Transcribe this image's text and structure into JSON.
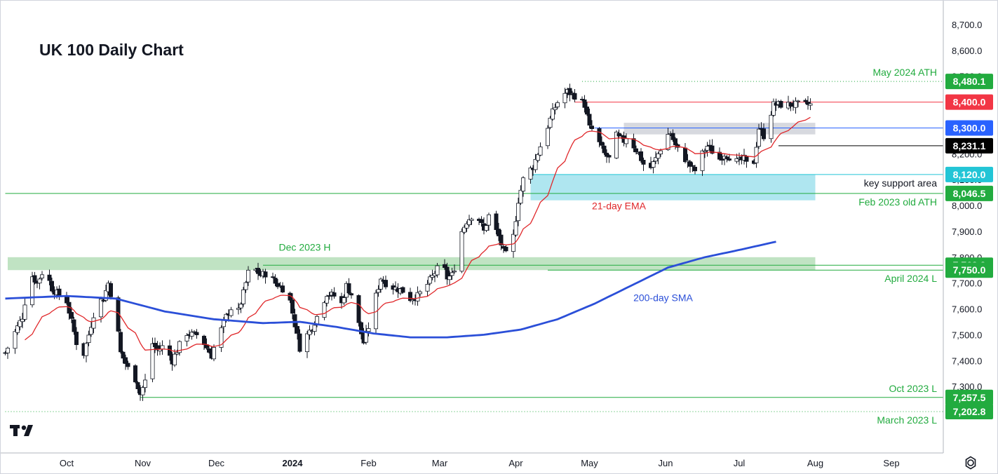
{
  "chart_data": {
    "type": "candlestick",
    "title": "UK 100 Daily Chart",
    "ylim": [
      7180,
      8760
    ],
    "y_ticks": [
      "7,300.0",
      "7,400.0",
      "7,500.0",
      "7,600.0",
      "7,700.0",
      "7,800.0",
      "7,900.0",
      "8,000.0",
      "8,100.0",
      "8,200.0",
      "8,300.0",
      "8,400.0",
      "8,500.0",
      "8,600.0",
      "8,700.0"
    ],
    "x_ticks": [
      {
        "label": "Oct",
        "day": 0,
        "bold": false
      },
      {
        "label": "Nov",
        "day": 31,
        "bold": false
      },
      {
        "label": "Dec",
        "day": 61,
        "bold": false
      },
      {
        "label": "2024",
        "day": 92,
        "bold": true
      },
      {
        "label": "Feb",
        "day": 123,
        "bold": false
      },
      {
        "label": "Mar",
        "day": 152,
        "bold": false
      },
      {
        "label": "Apr",
        "day": 183,
        "bold": false
      },
      {
        "label": "May",
        "day": 213,
        "bold": false
      },
      {
        "label": "Jun",
        "day": 244,
        "bold": false
      },
      {
        "label": "Jul",
        "day": 274,
        "bold": false
      },
      {
        "label": "Aug",
        "day": 305,
        "bold": false
      },
      {
        "label": "Sep",
        "day": 336,
        "bold": false
      }
    ],
    "price_path": {
      "start_day": -25,
      "end_day": 303,
      "anchors": [
        [
          -25,
          7430
        ],
        [
          -22,
          7490
        ],
        [
          -18,
          7570
        ],
        [
          -15,
          7740
        ],
        [
          -12,
          7700
        ],
        [
          -9,
          7760
        ],
        [
          -6,
          7680
        ],
        [
          -3,
          7650
        ],
        [
          0,
          7630
        ],
        [
          4,
          7470
        ],
        [
          6,
          7390
        ],
        [
          9,
          7500
        ],
        [
          12,
          7620
        ],
        [
          15,
          7640
        ],
        [
          17,
          7700
        ],
        [
          20,
          7580
        ],
        [
          22,
          7430
        ],
        [
          25,
          7370
        ],
        [
          28,
          7330
        ],
        [
          30,
          7270
        ],
        [
          32,
          7320
        ],
        [
          34,
          7480
        ],
        [
          37,
          7440
        ],
        [
          40,
          7460
        ],
        [
          43,
          7400
        ],
        [
          46,
          7460
        ],
        [
          48,
          7510
        ],
        [
          51,
          7500
        ],
        [
          54,
          7500
        ],
        [
          57,
          7450
        ],
        [
          59,
          7420
        ],
        [
          61,
          7480
        ],
        [
          63,
          7520
        ],
        [
          65,
          7570
        ],
        [
          68,
          7620
        ],
        [
          70,
          7590
        ],
        [
          72,
          7660
        ],
        [
          74,
          7740
        ],
        [
          76,
          7760
        ],
        [
          79,
          7730
        ],
        [
          82,
          7740
        ],
        [
          85,
          7700
        ],
        [
          88,
          7680
        ],
        [
          91,
          7630
        ],
        [
          93,
          7540
        ],
        [
          95,
          7450
        ],
        [
          98,
          7500
        ],
        [
          100,
          7530
        ],
        [
          103,
          7590
        ],
        [
          106,
          7660
        ],
        [
          109,
          7650
        ],
        [
          112,
          7620
        ],
        [
          114,
          7690
        ],
        [
          117,
          7640
        ],
        [
          119,
          7540
        ],
        [
          121,
          7470
        ],
        [
          124,
          7560
        ],
        [
          126,
          7650
        ],
        [
          128,
          7720
        ],
        [
          131,
          7690
        ],
        [
          134,
          7680
        ],
        [
          137,
          7670
        ],
        [
          140,
          7640
        ],
        [
          143,
          7650
        ],
        [
          146,
          7680
        ],
        [
          148,
          7710
        ],
        [
          150,
          7740
        ],
        [
          153,
          7780
        ],
        [
          155,
          7720
        ],
        [
          157,
          7730
        ],
        [
          159,
          7790
        ],
        [
          161,
          7900
        ],
        [
          163,
          7940
        ],
        [
          165,
          7960
        ],
        [
          167,
          7970
        ],
        [
          170,
          7900
        ],
        [
          172,
          7960
        ],
        [
          174,
          7920
        ],
        [
          176,
          7880
        ],
        [
          178,
          7820
        ],
        [
          180,
          7800
        ],
        [
          182,
          7880
        ],
        [
          184,
          8020
        ],
        [
          186,
          8100
        ],
        [
          188,
          8130
        ],
        [
          190,
          8150
        ],
        [
          193,
          8230
        ],
        [
          195,
          8280
        ],
        [
          198,
          8360
        ],
        [
          201,
          8420
        ],
        [
          204,
          8440
        ],
        [
          206,
          8430
        ],
        [
          208,
          8420
        ],
        [
          211,
          8390
        ],
        [
          213,
          8300
        ],
        [
          215,
          8290
        ],
        [
          217,
          8240
        ],
        [
          219,
          8200
        ],
        [
          221,
          8180
        ],
        [
          223,
          8280
        ],
        [
          225,
          8260
        ],
        [
          227,
          8250
        ],
        [
          229,
          8280
        ],
        [
          231,
          8230
        ],
        [
          233,
          8200
        ],
        [
          235,
          8160
        ],
        [
          237,
          8130
        ],
        [
          240,
          8180
        ],
        [
          242,
          8220
        ],
        [
          244,
          8270
        ],
        [
          246,
          8280
        ],
        [
          248,
          8230
        ],
        [
          250,
          8200
        ],
        [
          252,
          8180
        ],
        [
          255,
          8140
        ],
        [
          257,
          8130
        ],
        [
          259,
          8200
        ],
        [
          261,
          8230
        ],
        [
          264,
          8200
        ],
        [
          266,
          8180
        ],
        [
          268,
          8200
        ],
        [
          270,
          8190
        ],
        [
          272,
          8170
        ],
        [
          274,
          8170
        ],
        [
          276,
          8180
        ],
        [
          278,
          8140
        ],
        [
          280,
          8170
        ],
        [
          282,
          8300
        ],
        [
          284,
          8270
        ],
        [
          286,
          8330
        ],
        [
          288,
          8390
        ]
      ],
      "open_day": 22.8
    },
    "series": [
      {
        "name": "21-day EMA",
        "type": "ema",
        "period": 21,
        "color": "#e0272a"
      },
      {
        "name": "200-day SMA",
        "type": "sma_curve",
        "color": "#2b4fd8",
        "points": [
          [
            -25,
            7640
          ],
          [
            0,
            7650
          ],
          [
            20,
            7640
          ],
          [
            40,
            7590
          ],
          [
            60,
            7560
          ],
          [
            80,
            7545
          ],
          [
            95,
            7550
          ],
          [
            110,
            7530
          ],
          [
            125,
            7505
          ],
          [
            140,
            7490
          ],
          [
            155,
            7490
          ],
          [
            170,
            7500
          ],
          [
            185,
            7520
          ],
          [
            200,
            7560
          ],
          [
            215,
            7620
          ],
          [
            230,
            7690
          ],
          [
            245,
            7760
          ],
          [
            260,
            7800
          ],
          [
            275,
            7830
          ],
          [
            289,
            7860
          ]
        ]
      }
    ],
    "zones": [
      {
        "name": "Dec 2023 H",
        "from_day": -24,
        "to_day": 305,
        "y0": 7750,
        "y1": 7800,
        "color": "#b9e0bd"
      },
      {
        "name": "key support area",
        "from_day": 189,
        "to_day": 305,
        "y0": 8020,
        "y1": 8120,
        "color": "#a6e3ee"
      },
      {
        "name": "8300 zone",
        "from_day": 227,
        "to_day": 305,
        "y0": 8275,
        "y1": 8320,
        "color": "#d3d5dc"
      }
    ],
    "levels": [
      {
        "price": 8480.1,
        "label": "8,480.1",
        "note": "May 2024 ATH",
        "color": "#22ab3f",
        "from_day": 210,
        "dotted": true
      },
      {
        "price": 8400.0,
        "label": "8,400.0",
        "note": "",
        "color": "#f23645",
        "from_day": 207,
        "dotted": false
      },
      {
        "price": 8300.0,
        "label": "8,300.0",
        "note": "",
        "color": "#2962ff",
        "from_day": 215,
        "dotted": false
      },
      {
        "price": 8231.1,
        "label": "8,231.1",
        "note": "",
        "color": "#000000",
        "from_day": 290,
        "dotted": false
      },
      {
        "price": 8120.0,
        "label": "8,120.0",
        "note": "key support area",
        "color": "#22c5d6",
        "from_day": 189,
        "dotted": false
      },
      {
        "price": 8046.5,
        "label": "8,046.5",
        "note": "Feb 2023 old ATH",
        "color": "#22ab3f",
        "from_day": -25,
        "dotted": false
      },
      {
        "price": 7769.0,
        "label": "7,769.0",
        "note": "",
        "color": "#22ab3f",
        "from_day": 80,
        "dotted": false
      },
      {
        "price": 7750.0,
        "label": "7,750.0",
        "note": "April 2024 L",
        "color": "#22ab3f",
        "from_day": 196,
        "dotted": false
      },
      {
        "price": 7257.5,
        "label": "7,257.5",
        "note": "Oct 2023 L",
        "color": "#22ab3f",
        "from_day": 30,
        "dotted": false
      },
      {
        "price": 7202.8,
        "label": "7,202.8",
        "note": "March 2023 L",
        "color": "#22ab3f",
        "from_day": -25,
        "dotted": true
      }
    ],
    "annotations": [
      {
        "text": "Dec 2023 H",
        "day": 97,
        "price": 7825,
        "color": "#22ab3f"
      },
      {
        "text": "21-day EMA",
        "day": 225,
        "price": 7985,
        "color": "#e0272a"
      },
      {
        "text": "200-day SMA",
        "day": 243,
        "price": 7630,
        "color": "#2b4fd8"
      }
    ]
  }
}
